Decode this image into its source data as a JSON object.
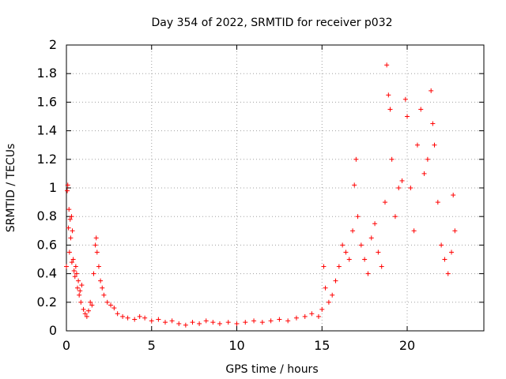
{
  "chart_data": {
    "type": "scatter",
    "title": "Day 354 of 2022, SRMTID for receiver p032",
    "xlabel": "GPS time / hours",
    "ylabel": "SRMTID / TECUs",
    "xlim": [
      0,
      24.5
    ],
    "ylim": [
      0,
      2
    ],
    "x_ticks": [
      0,
      5,
      10,
      15,
      20
    ],
    "y_ticks": [
      0,
      0.2,
      0.4,
      0.6,
      0.8,
      1,
      1.2,
      1.4,
      1.6,
      1.8,
      2
    ],
    "grid": true,
    "marker": "+",
    "color": "#ff0000",
    "series": [
      {
        "name": "p032",
        "points": [
          [
            0.0,
            0.45
          ],
          [
            0.05,
            0.98
          ],
          [
            0.08,
            1.02
          ],
          [
            0.12,
            0.72
          ],
          [
            0.15,
            0.85
          ],
          [
            0.18,
            0.55
          ],
          [
            0.22,
            0.78
          ],
          [
            0.25,
            0.65
          ],
          [
            0.3,
            0.8
          ],
          [
            0.32,
            0.48
          ],
          [
            0.35,
            0.7
          ],
          [
            0.4,
            0.5
          ],
          [
            0.45,
            0.42
          ],
          [
            0.5,
            0.38
          ],
          [
            0.55,
            0.45
          ],
          [
            0.6,
            0.4
          ],
          [
            0.65,
            0.3
          ],
          [
            0.7,
            0.35
          ],
          [
            0.75,
            0.25
          ],
          [
            0.8,
            0.28
          ],
          [
            0.85,
            0.2
          ],
          [
            0.9,
            0.32
          ],
          [
            1.0,
            0.15
          ],
          [
            1.1,
            0.12
          ],
          [
            1.2,
            0.1
          ],
          [
            1.3,
            0.14
          ],
          [
            1.4,
            0.2
          ],
          [
            1.5,
            0.18
          ],
          [
            1.6,
            0.4
          ],
          [
            1.7,
            0.6
          ],
          [
            1.75,
            0.65
          ],
          [
            1.8,
            0.55
          ],
          [
            1.9,
            0.45
          ],
          [
            2.0,
            0.35
          ],
          [
            2.1,
            0.3
          ],
          [
            2.2,
            0.25
          ],
          [
            2.4,
            0.2
          ],
          [
            2.6,
            0.18
          ],
          [
            2.8,
            0.16
          ],
          [
            3.0,
            0.12
          ],
          [
            3.3,
            0.1
          ],
          [
            3.6,
            0.09
          ],
          [
            4.0,
            0.08
          ],
          [
            4.3,
            0.1
          ],
          [
            4.6,
            0.09
          ],
          [
            5.0,
            0.07
          ],
          [
            5.4,
            0.08
          ],
          [
            5.8,
            0.06
          ],
          [
            6.2,
            0.07
          ],
          [
            6.6,
            0.05
          ],
          [
            7.0,
            0.04
          ],
          [
            7.4,
            0.06
          ],
          [
            7.8,
            0.05
          ],
          [
            8.2,
            0.07
          ],
          [
            8.6,
            0.06
          ],
          [
            9.0,
            0.05
          ],
          [
            9.5,
            0.06
          ],
          [
            10.0,
            0.05
          ],
          [
            10.5,
            0.06
          ],
          [
            11.0,
            0.07
          ],
          [
            11.5,
            0.06
          ],
          [
            12.0,
            0.07
          ],
          [
            12.5,
            0.08
          ],
          [
            13.0,
            0.07
          ],
          [
            13.5,
            0.09
          ],
          [
            14.0,
            0.1
          ],
          [
            14.4,
            0.12
          ],
          [
            14.8,
            0.1
          ],
          [
            15.0,
            0.15
          ],
          [
            15.1,
            0.45
          ],
          [
            15.2,
            0.3
          ],
          [
            15.4,
            0.2
          ],
          [
            15.6,
            0.25
          ],
          [
            15.8,
            0.35
          ],
          [
            16.0,
            0.45
          ],
          [
            16.2,
            0.6
          ],
          [
            16.4,
            0.55
          ],
          [
            16.6,
            0.5
          ],
          [
            16.8,
            0.7
          ],
          [
            16.9,
            1.02
          ],
          [
            17.0,
            1.2
          ],
          [
            17.1,
            0.8
          ],
          [
            17.3,
            0.6
          ],
          [
            17.5,
            0.5
          ],
          [
            17.7,
            0.4
          ],
          [
            17.9,
            0.65
          ],
          [
            18.1,
            0.75
          ],
          [
            18.3,
            0.55
          ],
          [
            18.5,
            0.45
          ],
          [
            18.7,
            0.9
          ],
          [
            18.8,
            1.86
          ],
          [
            18.9,
            1.65
          ],
          [
            19.0,
            1.55
          ],
          [
            19.1,
            1.2
          ],
          [
            19.3,
            0.8
          ],
          [
            19.5,
            1.0
          ],
          [
            19.7,
            1.05
          ],
          [
            19.9,
            1.62
          ],
          [
            20.0,
            1.5
          ],
          [
            20.2,
            1.0
          ],
          [
            20.4,
            0.7
          ],
          [
            20.6,
            1.3
          ],
          [
            20.8,
            1.55
          ],
          [
            21.0,
            1.1
          ],
          [
            21.2,
            1.2
          ],
          [
            21.4,
            1.68
          ],
          [
            21.5,
            1.45
          ],
          [
            21.6,
            1.3
          ],
          [
            21.8,
            0.9
          ],
          [
            22.0,
            0.6
          ],
          [
            22.2,
            0.5
          ],
          [
            22.4,
            0.4
          ],
          [
            22.6,
            0.55
          ],
          [
            22.7,
            0.95
          ],
          [
            22.8,
            0.7
          ]
        ]
      }
    ]
  }
}
